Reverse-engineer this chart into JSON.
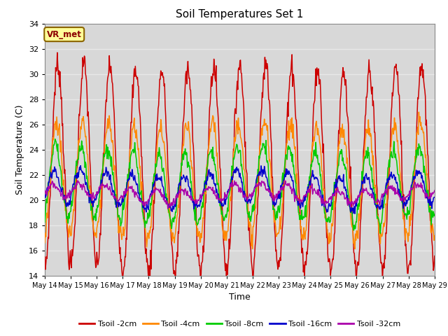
{
  "title": "Soil Temperatures Set 1",
  "xlabel": "Time",
  "ylabel": "Soil Temperature (C)",
  "ylim": [
    14,
    34
  ],
  "yticks": [
    14,
    16,
    18,
    20,
    22,
    24,
    26,
    28,
    30,
    32,
    34
  ],
  "x_labels": [
    "May 14",
    "May 15",
    "May 16",
    "May 17",
    "May 18",
    "May 19",
    "May 20",
    "May 21",
    "May 22",
    "May 23",
    "May 24",
    "May 25",
    "May 26",
    "May 27",
    "May 28",
    "May 29"
  ],
  "plot_bg_color": "#d8d8d8",
  "fig_bg_color": "#ffffff",
  "grid_color": "#e8e8e8",
  "annotation_text": "VR_met",
  "annotation_box_color": "#ffff99",
  "annotation_border_color": "#8B6400",
  "annotation_text_color": "#8B0000",
  "series": [
    {
      "label": "Tsoil -2cm",
      "color": "#cc0000",
      "amplitude": 8.0,
      "mean": 22.5,
      "phase": -1.57,
      "noise": 0.5
    },
    {
      "label": "Tsoil -4cm",
      "color": "#ff8800",
      "amplitude": 4.5,
      "mean": 21.5,
      "phase": -1.27,
      "noise": 0.4
    },
    {
      "label": "Tsoil -8cm",
      "color": "#00cc00",
      "amplitude": 2.8,
      "mean": 21.2,
      "phase": -0.97,
      "noise": 0.3
    },
    {
      "label": "Tsoil -16cm",
      "color": "#0000cc",
      "amplitude": 1.3,
      "mean": 20.8,
      "phase": -0.67,
      "noise": 0.2
    },
    {
      "label": "Tsoil -32cm",
      "color": "#aa00aa",
      "amplitude": 0.55,
      "mean": 20.5,
      "phase": -0.37,
      "noise": 0.15
    }
  ],
  "n_days": 15,
  "samples_per_day": 48
}
